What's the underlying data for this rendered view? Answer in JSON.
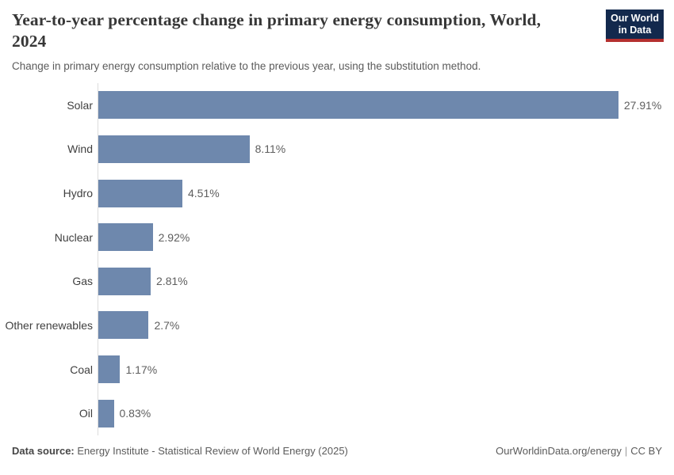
{
  "header": {
    "title": "Year-to-year percentage change in primary energy consumption, World, 2024",
    "subtitle": "Change in primary energy consumption relative to the previous year, using the substitution method.",
    "logo": {
      "line1": "Our World",
      "line2": "in Data",
      "bg_color": "#13294d",
      "accent_color": "#b5302f"
    }
  },
  "chart_data": {
    "type": "bar",
    "orientation": "horizontal",
    "title": "Year-to-year percentage change in primary energy consumption, World, 2024",
    "categories": [
      "Solar",
      "Wind",
      "Hydro",
      "Nuclear",
      "Gas",
      "Other renewables",
      "Coal",
      "Oil"
    ],
    "values": [
      27.91,
      8.11,
      4.51,
      2.92,
      2.81,
      2.7,
      1.17,
      0.83
    ],
    "value_labels": [
      "27.91%",
      "8.11%",
      "4.51%",
      "2.92%",
      "2.81%",
      "2.7%",
      "1.17%",
      "0.83%"
    ],
    "xlabel": "",
    "ylabel": "",
    "xlim": [
      0,
      30.9
    ],
    "grid": false,
    "legend": false,
    "bar_color": "#6e88ad",
    "axis_line_color": "#dcdcdc"
  },
  "footer": {
    "source_label": "Data source:",
    "source_text": " Energy Institute - Statistical Review of World Energy (2025)",
    "site": "OurWorldinData.org/energy",
    "separator": "|",
    "license": "CC BY"
  }
}
